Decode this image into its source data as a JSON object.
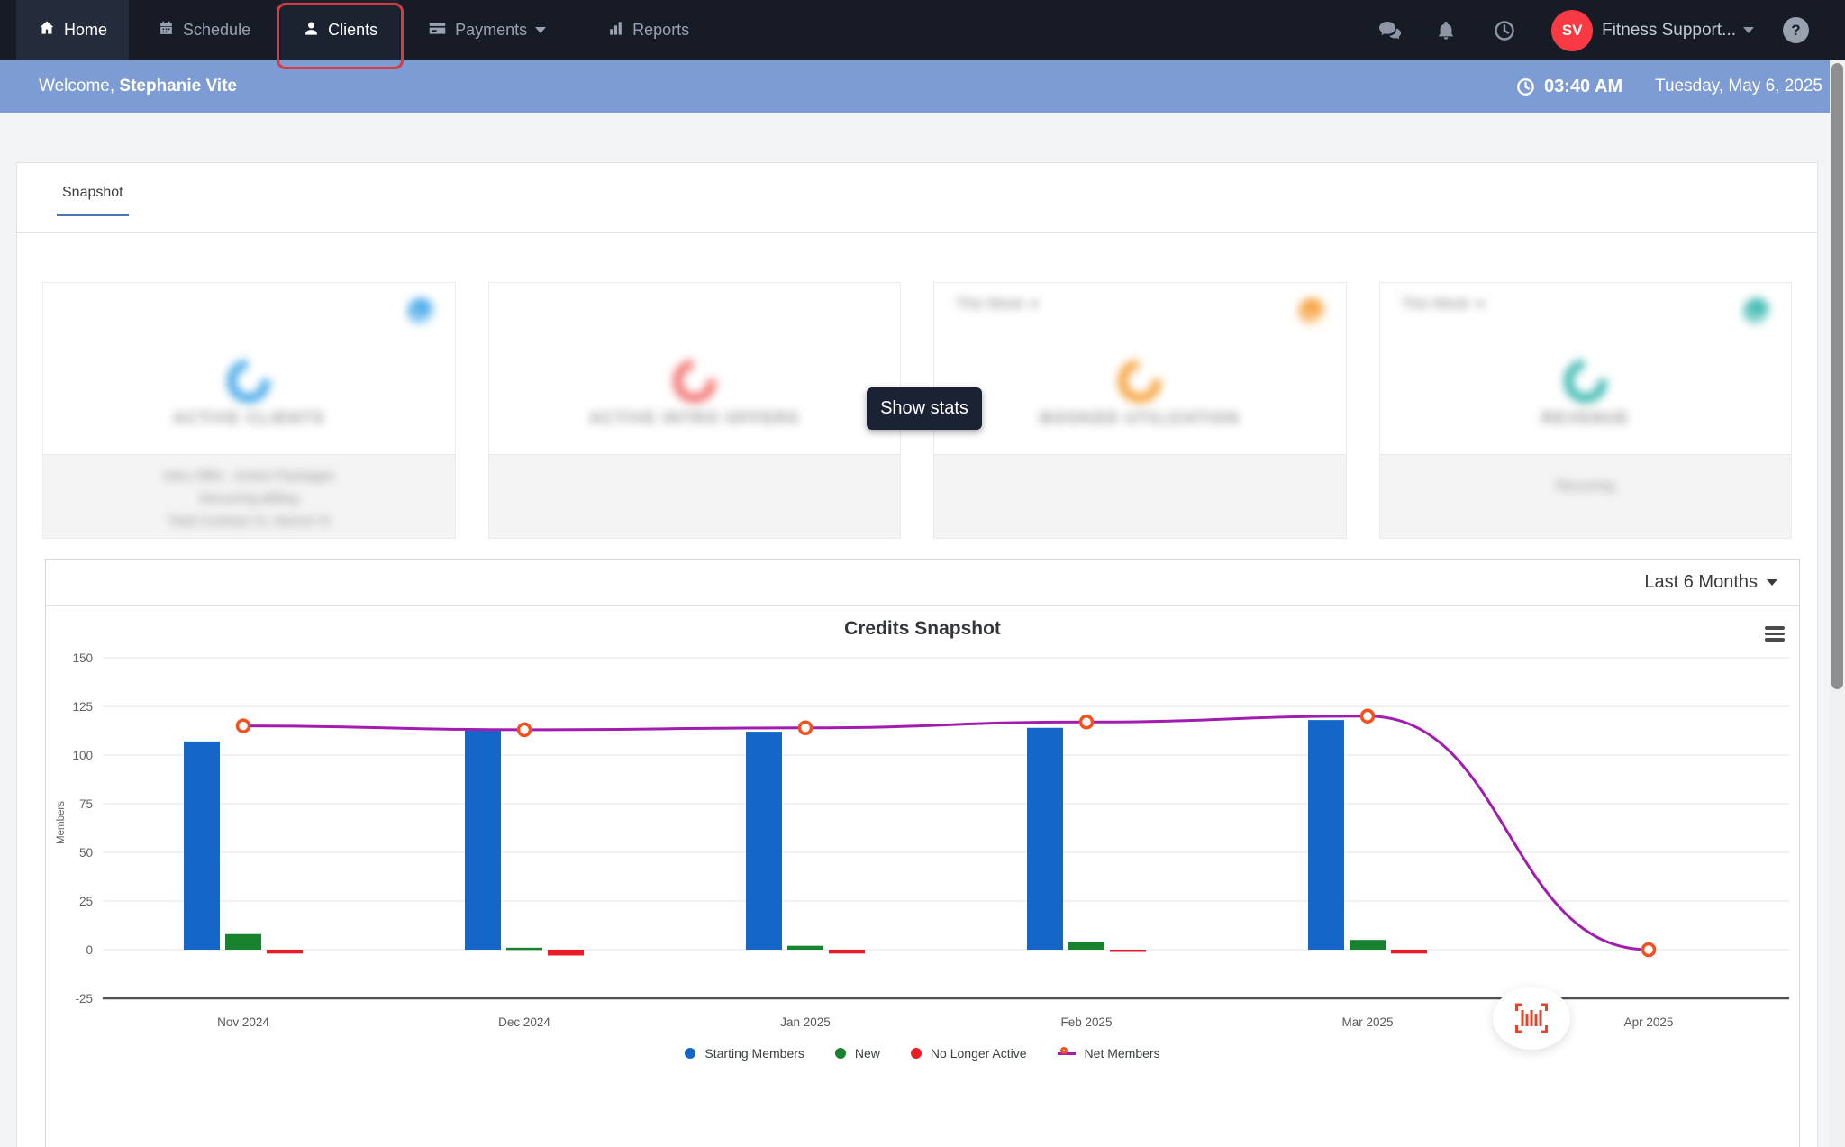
{
  "topbar": {
    "nav": [
      {
        "label": "Home"
      },
      {
        "label": "Schedule"
      },
      {
        "label": "Clients"
      },
      {
        "label": "Payments"
      },
      {
        "label": "Reports"
      }
    ],
    "user_initials": "SV",
    "user_name": "Fitness Support...",
    "help_glyph": "?"
  },
  "welcome": {
    "greeting": "Welcome, ",
    "name": "Stephanie Vite",
    "time": "03:40 AM",
    "date": "Tuesday, May 6, 2025"
  },
  "tabs": {
    "snapshot": "Snapshot"
  },
  "show_stats": "Show stats",
  "stat_cards": [
    {
      "title": "ACTIVE CLIENTS",
      "accent": "#46a8e9",
      "period": "",
      "footer_lines": [
        "Intro Offer . Active Packages",
        "Recurring Billing",
        "Total Contract %, Alumni %"
      ]
    },
    {
      "title": "ACTIVE INTRO OFFERS",
      "accent": "#f2736f",
      "period": "",
      "footer_lines": []
    },
    {
      "title": "BOOKED UTILIZATION",
      "accent": "#f6a13b",
      "period": "This Week",
      "footer_lines": []
    },
    {
      "title": "REVENUE",
      "accent": "#3bb8b0",
      "period": "This Week",
      "footer_lines": [
        "Recurring"
      ]
    }
  ],
  "chart_panel": {
    "range_selector": "Last 6 Months"
  },
  "chart_data": {
    "type": "bar+line",
    "title": "Credits Snapshot",
    "xlabel": "",
    "ylabel": "Members",
    "ylim": [
      -25,
      150
    ],
    "ytick_step": 25,
    "grid": true,
    "legend_position": "bottom",
    "categories": [
      "Nov 2024",
      "Dec 2024",
      "Jan 2025",
      "Feb 2025",
      "Mar 2025",
      "Apr 2025"
    ],
    "series": [
      {
        "name": "Starting Members",
        "type": "bar",
        "color": "#1467c8",
        "values": [
          107,
          113,
          112,
          114,
          118,
          0
        ]
      },
      {
        "name": "New",
        "type": "bar",
        "color": "#17832f",
        "values": [
          8,
          1,
          2,
          4,
          5,
          0
        ]
      },
      {
        "name": "No Longer Active",
        "type": "bar",
        "color": "#ed1c24",
        "values": [
          -2,
          -3,
          -2,
          -1,
          -2,
          0
        ]
      },
      {
        "name": "Net Members",
        "type": "line",
        "color": "#a21caf",
        "marker_color": "#f4511e",
        "values": [
          115,
          113,
          114,
          117,
          120,
          0
        ]
      }
    ]
  }
}
